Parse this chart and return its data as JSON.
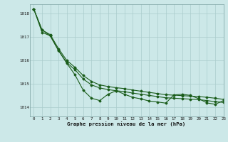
{
  "title": "Graphe pression niveau de la mer (hPa)",
  "background_color": "#cce8e8",
  "grid_color": "#aacccc",
  "line_color": "#1a5c1a",
  "xlim": [
    -0.5,
    23
  ],
  "ylim": [
    1013.6,
    1018.4
  ],
  "yticks": [
    1014,
    1015,
    1016,
    1017,
    1018
  ],
  "xticks": [
    0,
    1,
    2,
    3,
    4,
    5,
    6,
    7,
    8,
    9,
    10,
    11,
    12,
    13,
    14,
    15,
    16,
    17,
    18,
    19,
    20,
    21,
    22,
    23
  ],
  "hours": [
    0,
    1,
    2,
    3,
    4,
    5,
    6,
    7,
    8,
    9,
    10,
    11,
    12,
    13,
    14,
    15,
    16,
    17,
    18,
    19,
    20,
    21,
    22,
    23
  ],
  "line1_y": [
    1018.2,
    1017.3,
    1017.1,
    1016.5,
    1016.0,
    1015.7,
    1015.35,
    1015.1,
    1014.95,
    1014.88,
    1014.83,
    1014.79,
    1014.73,
    1014.68,
    1014.63,
    1014.58,
    1014.53,
    1014.51,
    1014.49,
    1014.47,
    1014.45,
    1014.42,
    1014.38,
    1014.33
  ],
  "line2_y": [
    1018.2,
    1017.3,
    1017.05,
    1016.42,
    1015.9,
    1015.6,
    1015.2,
    1014.95,
    1014.82,
    1014.75,
    1014.7,
    1014.66,
    1014.6,
    1014.55,
    1014.5,
    1014.45,
    1014.4,
    1014.38,
    1014.36,
    1014.34,
    1014.32,
    1014.28,
    1014.23,
    1014.2
  ],
  "line3_y": [
    1018.2,
    1017.2,
    1017.05,
    1016.42,
    1015.88,
    1015.38,
    1014.72,
    1014.38,
    1014.28,
    1014.55,
    1014.7,
    1014.55,
    1014.42,
    1014.35,
    1014.26,
    1014.22,
    1014.17,
    1014.52,
    1014.55,
    1014.5,
    1014.36,
    1014.18,
    1014.12,
    1014.28
  ]
}
